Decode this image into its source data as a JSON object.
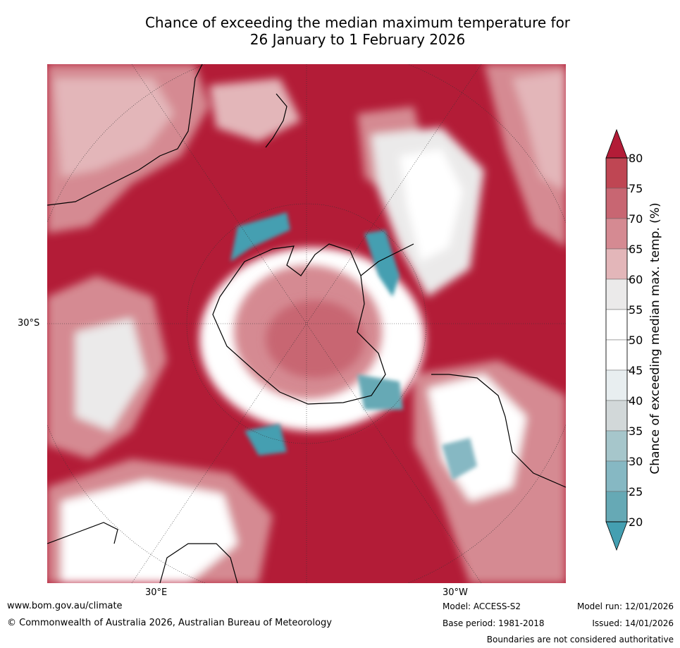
{
  "title": {
    "line1": "Chance of exceeding the median maximum temperature for",
    "line2": "26 January to 1 February 2026"
  },
  "map": {
    "projection": "South polar stereographic",
    "lat_label": "30°S",
    "lon_label_east": "30°E",
    "lon_label_west": "30°W",
    "colors": {
      "ocean_high": "#b31c37",
      "land_outline": "#000000"
    }
  },
  "colorbar": {
    "title": "Chance of exceeding median max. temp. (%)",
    "ticks": [
      "80",
      "75",
      "70",
      "65",
      "60",
      "55",
      "50",
      "45",
      "40",
      "35",
      "30",
      "25",
      "20"
    ],
    "colors": [
      "#b31c37",
      "#bf4653",
      "#c86672",
      "#d58a92",
      "#e3b6b9",
      "#ebeaea",
      "#ffffff",
      "#ffffff",
      "#e8eef0",
      "#d2d8d9",
      "#a6c6cb",
      "#86b8c3",
      "#66a9b5",
      "#449fb1"
    ]
  },
  "footer": {
    "url": "www.bom.gov.au/climate",
    "copyright": "© Commonwealth of Australia 2026, Australian Bureau of Meteorology",
    "model": "Model: ACCESS-S2",
    "base_period": "Base period: 1981-2018",
    "model_run": "Model run: 12/01/2026",
    "issued": "Issued: 14/01/2026",
    "boundaries": "Boundaries are not considered authoritative"
  }
}
